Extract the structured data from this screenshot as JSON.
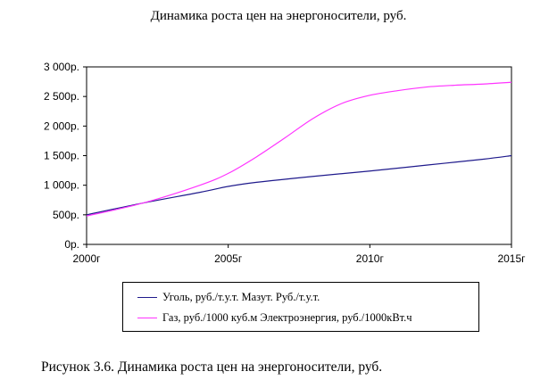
{
  "chart_data": {
    "type": "line",
    "title": "Динамика роста цен на энергоносители, руб.",
    "xlabel": "",
    "ylabel": "",
    "x": [
      2000,
      2005,
      2010,
      2015
    ],
    "x_tick_labels": [
      "2000г",
      "2005г",
      "2010г",
      "2015г"
    ],
    "y_tick_labels": [
      "0р.",
      "500р.",
      "1 000р.",
      "1 500р.",
      "2 000р.",
      "2 500р.",
      "3 000р."
    ],
    "ylim": [
      0,
      3000
    ],
    "xlim": [
      2000,
      2015
    ],
    "grid": false,
    "legend_position": "bottom",
    "series": [
      {
        "name": "Уголь, руб./т.у.т. Мазут. Руб./т.у.т.",
        "color": "#1f1a8c",
        "x": [
          2000,
          2002,
          2004,
          2005,
          2006,
          2008,
          2010,
          2012,
          2014,
          2015
        ],
        "values": [
          500,
          700,
          880,
          980,
          1050,
          1150,
          1240,
          1340,
          1440,
          1500
        ]
      },
      {
        "name": "Газ, руб./1000 куб.м Электроэнергия, руб./1000кВт.ч",
        "color": "#ff33ff",
        "x": [
          2000,
          2002,
          2004,
          2005,
          2006,
          2007,
          2008,
          2009,
          2010,
          2011,
          2012,
          2013,
          2014,
          2015
        ],
        "values": [
          480,
          700,
          1000,
          1200,
          1480,
          1800,
          2130,
          2380,
          2520,
          2600,
          2660,
          2690,
          2710,
          2740
        ]
      }
    ]
  },
  "caption": "Рисунок  3.6.  Динамика роста цен на энергоносители, руб."
}
